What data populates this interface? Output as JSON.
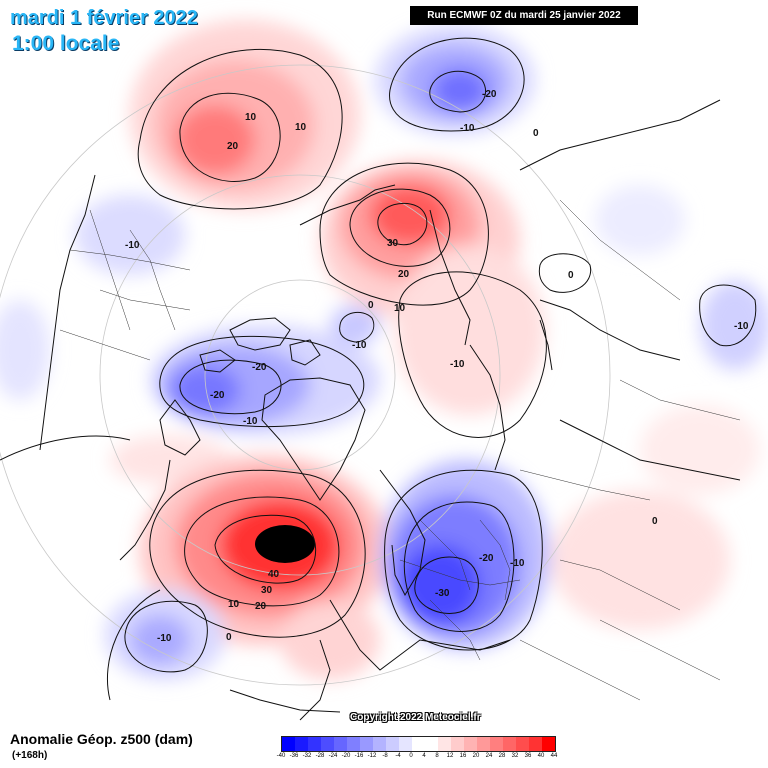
{
  "header": {
    "date_title": "mardi 1 février 2022",
    "time_title": "1:00 locale",
    "run_banner": "Run ECMWF 0Z du mardi 25 janvier 2022"
  },
  "footer": {
    "field_name": "Anomalie Géop. z500 (dam)",
    "lead_time": "(+168h)",
    "copyright": "Copyright 2022 Meteociel.fr"
  },
  "legend": {
    "labels": [
      "-40",
      "-36",
      "-32",
      "-28",
      "-24",
      "-20",
      "-16",
      "-12",
      "-8",
      "-4",
      "0",
      "4",
      "8",
      "12",
      "16",
      "20",
      "24",
      "28",
      "32",
      "36",
      "40",
      "44"
    ],
    "colors": [
      "#0000ff",
      "#1a1aff",
      "#3333ff",
      "#4d4dff",
      "#6666ff",
      "#7f7fff",
      "#9999ff",
      "#b3b3ff",
      "#ccccff",
      "#e5e5ff",
      "#ffffff",
      "#ffffff",
      "#ffe5e5",
      "#ffcccc",
      "#ffb3b3",
      "#ff9999",
      "#ff7f7f",
      "#ff6666",
      "#ff4d4d",
      "#ff3333",
      "#ff0000"
    ]
  },
  "contour_labels": [
    {
      "id": "ne-pacific-20",
      "text": "20"
    },
    {
      "id": "ne-pacific-10a",
      "text": "10"
    },
    {
      "id": "ne-pacific-10b",
      "text": "10"
    },
    {
      "id": "siberia-neg20",
      "text": "-20"
    },
    {
      "id": "siberia-neg10",
      "text": "-10"
    },
    {
      "id": "siberia-0",
      "text": "0"
    },
    {
      "id": "nw-america-neg10",
      "text": "-10"
    },
    {
      "id": "kamchatka-30",
      "text": "30"
    },
    {
      "id": "kamchatka-20",
      "text": "20"
    },
    {
      "id": "kamchatka-10",
      "text": "10"
    },
    {
      "id": "asia-0",
      "text": "0"
    },
    {
      "id": "east-asia-neg10",
      "text": "-10"
    },
    {
      "id": "arctic-0",
      "text": "0"
    },
    {
      "id": "arctic-neg10",
      "text": "-10"
    },
    {
      "id": "canada-neg20a",
      "text": "-20"
    },
    {
      "id": "canada-neg20b",
      "text": "-20"
    },
    {
      "id": "canada-neg10",
      "text": "-10"
    },
    {
      "id": "siberia-east-neg10",
      "text": "-10"
    },
    {
      "id": "atlantic-40",
      "text": "40"
    },
    {
      "id": "atlantic-30",
      "text": "30"
    },
    {
      "id": "atlantic-20",
      "text": "20"
    },
    {
      "id": "atlantic-10",
      "text": "10"
    },
    {
      "id": "atlantic-0",
      "text": "0"
    },
    {
      "id": "atlantic-neg10",
      "text": "-10"
    },
    {
      "id": "europe-neg20",
      "text": "-20"
    },
    {
      "id": "europe-neg10",
      "text": "-10"
    },
    {
      "id": "europe-neg30",
      "text": "-30"
    },
    {
      "id": "east-0",
      "text": "0"
    }
  ]
}
